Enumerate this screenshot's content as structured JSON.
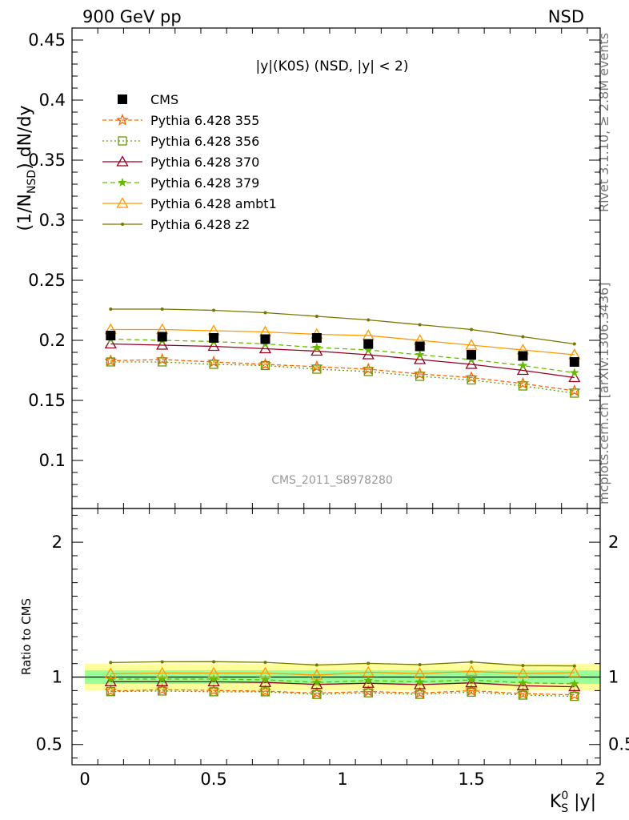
{
  "header": {
    "energy_label": "900 GeV pp",
    "process_label": "NSD"
  },
  "side_text": {
    "rivet": "Rivet 3.1.10, ≥ 2.8M events",
    "mcplots": "mcplots.cern.ch [arXiv:1306.3436]"
  },
  "chart_data": {
    "type": "line",
    "title": "|y|(K0S) (NSD, |y| < 2)",
    "watermark": "CMS_2011_S8978280",
    "ylabel": "(1/N_NSD) dN/dy",
    "xlabel": "K_S^0 |y|",
    "ratio_ylabel": "Ratio to CMS",
    "xlim": [
      -0.05,
      2.0
    ],
    "ylim": [
      0.06,
      0.46
    ],
    "ratio_ylim": [
      0.35,
      2.25
    ],
    "x_ticks": [
      0,
      0.5,
      1,
      1.5,
      2
    ],
    "x_tick_labels": [
      "0",
      "0.5",
      "1",
      "1.5",
      "2"
    ],
    "y_ticks": [
      0.1,
      0.15,
      0.2,
      0.25,
      0.3,
      0.35,
      0.4,
      0.45
    ],
    "y_tick_labels": [
      "0.1",
      "0.15",
      "0.2",
      "0.25",
      "0.3",
      "0.35",
      "0.4",
      "0.45"
    ],
    "ratio_ticks": [
      0.5,
      1,
      2
    ],
    "ratio_tick_labels": [
      "0.5",
      "1",
      "2"
    ],
    "x": [
      0.1,
      0.3,
      0.5,
      0.7,
      0.9,
      1.1,
      1.3,
      1.5,
      1.7,
      1.9
    ],
    "data": {
      "name": "CMS",
      "values": [
        0.204,
        0.203,
        0.202,
        0.201,
        0.202,
        0.197,
        0.195,
        0.188,
        0.187,
        0.182
      ],
      "band_inner": [
        0.95,
        1.05
      ],
      "band_outer": [
        0.9,
        1.1
      ],
      "color": "#000000"
    },
    "series": [
      {
        "name": "Pythia 6.428 355",
        "color": "#ff6600",
        "dash": "5,3",
        "marker": "star",
        "values": [
          0.183,
          0.184,
          0.182,
          0.18,
          0.178,
          0.176,
          0.172,
          0.169,
          0.164,
          0.158
        ]
      },
      {
        "name": "Pythia 6.428 356",
        "color": "#669900",
        "dash": "2,3",
        "marker": "square-open",
        "values": [
          0.182,
          0.182,
          0.18,
          0.179,
          0.176,
          0.174,
          0.17,
          0.167,
          0.162,
          0.156
        ]
      },
      {
        "name": "Pythia 6.428 370",
        "color": "#990022",
        "dash": "",
        "marker": "triangle-open",
        "values": [
          0.197,
          0.196,
          0.195,
          0.193,
          0.191,
          0.188,
          0.184,
          0.18,
          0.175,
          0.169
        ]
      },
      {
        "name": "Pythia 6.428 379",
        "color": "#66bb00",
        "dash": "6,4",
        "marker": "star-filled",
        "values": [
          0.201,
          0.2,
          0.199,
          0.197,
          0.194,
          0.192,
          0.188,
          0.184,
          0.179,
          0.173
        ]
      },
      {
        "name": "Pythia 6.428 ambt1",
        "color": "#ff9900",
        "dash": "",
        "marker": "triangle-open",
        "values": [
          0.209,
          0.209,
          0.208,
          0.207,
          0.205,
          0.204,
          0.2,
          0.196,
          0.192,
          0.188
        ]
      },
      {
        "name": "Pythia 6.428 z2",
        "color": "#777700",
        "dash": "",
        "marker": "dot",
        "values": [
          0.226,
          0.226,
          0.225,
          0.223,
          0.22,
          0.217,
          0.213,
          0.209,
          0.203,
          0.197
        ]
      }
    ]
  }
}
